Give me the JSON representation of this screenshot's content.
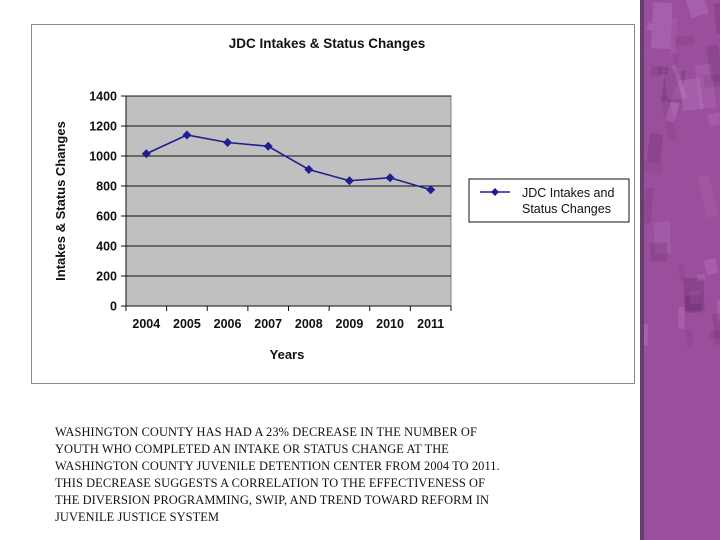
{
  "chart_data": {
    "type": "line",
    "title": "JDC Intakes & Status Changes",
    "xlabel": "Years",
    "ylabel": "Intakes & Status Changes",
    "categories": [
      "2004",
      "2005",
      "2006",
      "2007",
      "2008",
      "2009",
      "2010",
      "2011"
    ],
    "series": [
      {
        "name": "JDC Intakes and Status Changes",
        "values": [
          1015,
          1140,
          1090,
          1065,
          910,
          835,
          855,
          775
        ]
      }
    ],
    "ylim": [
      0,
      1400
    ],
    "yticks": [
      0,
      200,
      400,
      600,
      800,
      1000,
      1200,
      1400
    ],
    "ytick_labels": [
      "0",
      "200",
      "400",
      "600",
      "800",
      "1000",
      "1200",
      "1400"
    ],
    "grid": true,
    "plot_background": "#c0c0c0",
    "line_color": "#1f1f8f",
    "marker": "diamond",
    "legend_position": "right",
    "legend_lines": [
      "JDC Intakes and",
      "Status Changes"
    ]
  },
  "caption_lines": [
    "WASHINGTON COUNTY HAS HAD A 23% DECREASE IN THE NUMBER OF",
    "YOUTH WHO COMPLETED AN INTAKE OR STATUS CHANGE AT THE",
    "WASHINGTON COUNTY JUVENILE DETENTION CENTER FROM 2004 TO 2011.",
    "THIS DECREASE SUGGESTS A CORRELATION TO THE EFFECTIVENESS OF",
    "THE DIVERSION PROGRAMMING, SWIP, AND TREND TOWARD REFORM IN",
    "JUVENILE JUSTICE SYSTEM"
  ],
  "theme": {
    "band_color": "#9a4f9c"
  }
}
